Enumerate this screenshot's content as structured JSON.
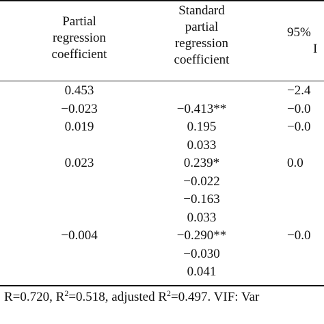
{
  "table": {
    "headers": [
      [
        "Partial",
        "regression",
        "coefficient"
      ],
      [
        "Standard",
        "partial",
        "regression",
        "coefficient"
      ],
      [
        "95%",
        "I"
      ]
    ],
    "rows": [
      {
        "c1": "0.453",
        "c2": "",
        "c3": "−2.4"
      },
      {
        "c1": "−0.023",
        "c2": "−0.413**",
        "c3": "−0.0"
      },
      {
        "c1": "0.019",
        "c2": "0.195",
        "c3": "−0.0"
      },
      {
        "c1": "",
        "c2": "0.033",
        "c3": ""
      },
      {
        "c1": "0.023",
        "c2": "0.239*",
        "c3": "0.0"
      },
      {
        "c1": "",
        "c2": "−0.022",
        "c3": ""
      },
      {
        "c1": "",
        "c2": "−0.163",
        "c3": ""
      },
      {
        "c1": "",
        "c2": "0.033",
        "c3": ""
      },
      {
        "c1": "−0.004",
        "c2": "−0.290**",
        "c3": "−0.0"
      },
      {
        "c1": "",
        "c2": "−0.030",
        "c3": ""
      },
      {
        "c1": "",
        "c2": "0.041",
        "c3": ""
      }
    ]
  },
  "footer": {
    "r": "R=0.720, R",
    "r2_sup": "2",
    "r2_val": "=0.518, adjusted R",
    "adj_sup": "2",
    "adj_val": "=0.497. VIF: Var"
  }
}
